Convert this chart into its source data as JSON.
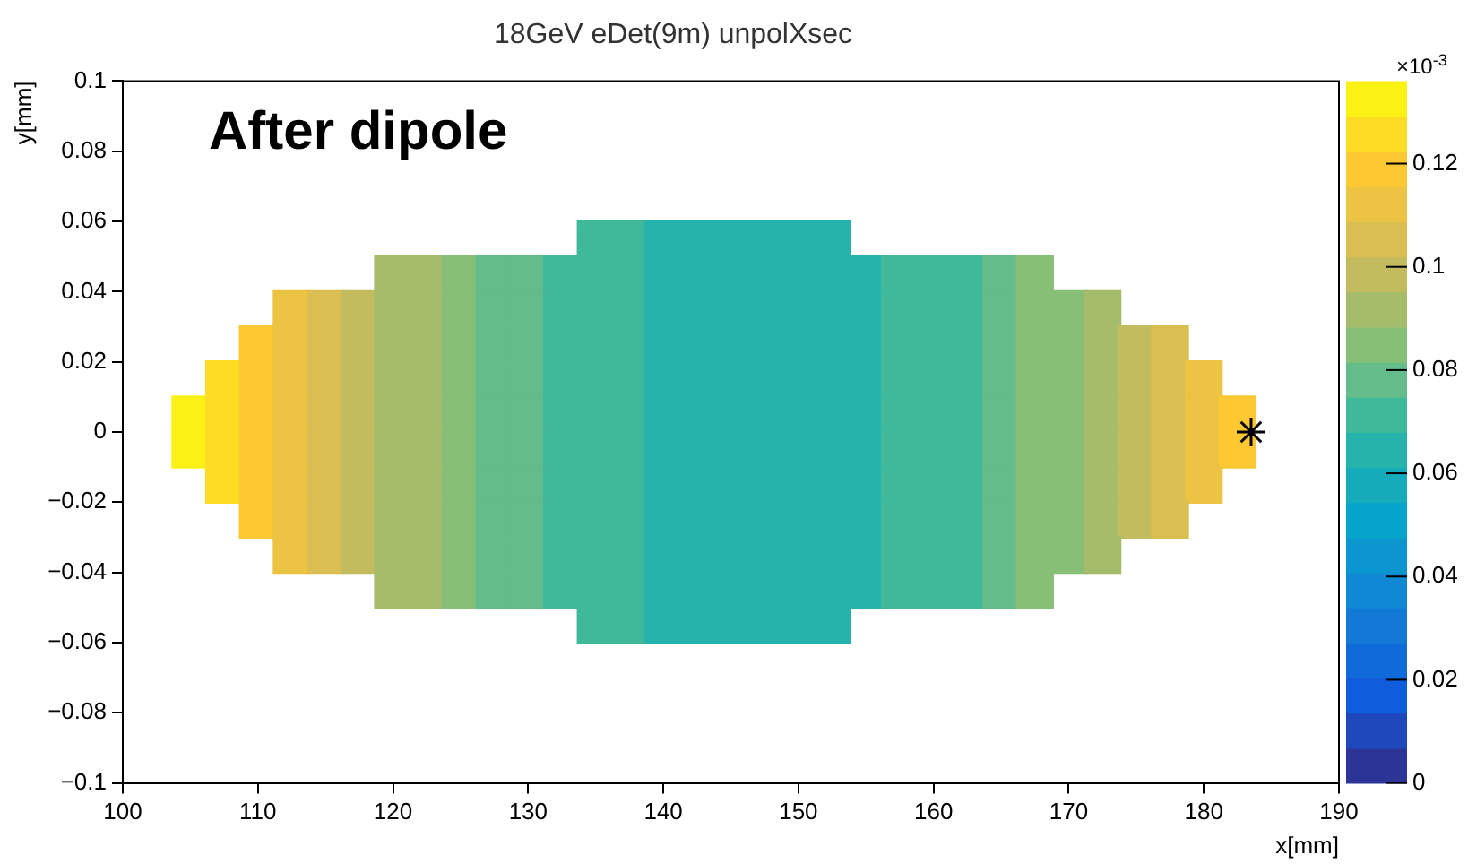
{
  "chart_data": {
    "type": "scatter",
    "title": "18GeV eDet(9m) unpolXsec",
    "xlabel": "x[mm]",
    "ylabel": "y[mm]",
    "clabel": "×10$^{-3}$",
    "annotations": [
      "After dipole"
    ],
    "xlim": [
      100,
      190
    ],
    "xticks": [
      100,
      110,
      120,
      130,
      140,
      150,
      160,
      170,
      180,
      190
    ],
    "ylim": [
      -0.1,
      0.1
    ],
    "yticks": [
      -0.1,
      -0.08,
      -0.06,
      -0.04,
      -0.02,
      0,
      0.02,
      0.04,
      0.06,
      0.08,
      0.1
    ],
    "clim": [
      0,
      0.136
    ],
    "cticks": [
      0,
      0.02,
      0.04,
      0.06,
      0.08,
      0.1,
      0.12
    ],
    "grid": false,
    "series": [
      {
        "type": "scatter",
        "marker": "square",
        "x": [
          135,
          137.5,
          140,
          142.5,
          145,
          147.5,
          150,
          152.5,
          120,
          122.5,
          125,
          127.5,
          130,
          132.5,
          135,
          137.5,
          140,
          142.5,
          145,
          147.5,
          150,
          152.5,
          155,
          157.5,
          160,
          162.5,
          165,
          167.5,
          112.5,
          115,
          117.5,
          120,
          122.5,
          125,
          127.5,
          130,
          132.5,
          135,
          137.5,
          140,
          142.5,
          145,
          147.5,
          150,
          152.5,
          155,
          157.5,
          160,
          162.5,
          165,
          167.5,
          170,
          172.5,
          110,
          112.5,
          115,
          117.5,
          120,
          122.5,
          125,
          127.5,
          130,
          132.5,
          135,
          137.5,
          140,
          142.5,
          145,
          147.5,
          150,
          152.5,
          155,
          157.5,
          160,
          162.5,
          165,
          167.5,
          170,
          172.5,
          175,
          177.5,
          107.5,
          110,
          112.5,
          115,
          117.5,
          120,
          122.5,
          125,
          127.5,
          130,
          132.5,
          135,
          137.5,
          140,
          142.5,
          145,
          147.5,
          150,
          152.5,
          155,
          157.5,
          160,
          162.5,
          165,
          167.5,
          170,
          172.5,
          175,
          177.5,
          180,
          105,
          107.5,
          110,
          112.5,
          115,
          117.5,
          120,
          122.5,
          125,
          127.5,
          130,
          132.5,
          135,
          137.5,
          140,
          142.5,
          145,
          147.5,
          150,
          152.5,
          155,
          157.5,
          160,
          162.5,
          165,
          167.5,
          170,
          172.5,
          175,
          177.5,
          180,
          182.5,
          105,
          107.5,
          110,
          112.5,
          115,
          117.5,
          120,
          122.5,
          125,
          127.5,
          130,
          132.5,
          135,
          137.5,
          140,
          142.5,
          145,
          147.5,
          150,
          152.5,
          155,
          157.5,
          160,
          162.5,
          165,
          167.5,
          170,
          172.5,
          175,
          177.5,
          180,
          182.5,
          107.5,
          110,
          112.5,
          115,
          117.5,
          120,
          122.5,
          125,
          127.5,
          130,
          132.5,
          135,
          137.5,
          140,
          142.5,
          145,
          147.5,
          150,
          152.5,
          155,
          157.5,
          160,
          162.5,
          165,
          167.5,
          170,
          172.5,
          175,
          177.5,
          180,
          110,
          112.5,
          115,
          117.5,
          120,
          122.5,
          125,
          127.5,
          130,
          132.5,
          135,
          137.5,
          140,
          142.5,
          145,
          147.5,
          150,
          152.5,
          155,
          157.5,
          160,
          162.5,
          165,
          167.5,
          170,
          172.5,
          175,
          177.5,
          112.5,
          115,
          117.5,
          120,
          122.5,
          125,
          127.5,
          130,
          132.5,
          135,
          137.5,
          140,
          142.5,
          145,
          147.5,
          150,
          152.5,
          155,
          157.5,
          160,
          162.5,
          165,
          167.5,
          170,
          172.5,
          120,
          122.5,
          125,
          127.5,
          130,
          132.5,
          135,
          137.5,
          140,
          142.5,
          145,
          147.5,
          150,
          152.5,
          155,
          157.5,
          160,
          162.5,
          165,
          167.5,
          135,
          137.5,
          140,
          142.5,
          145,
          147.5,
          150,
          152.5
        ],
        "values": [
          0.055,
          0.055,
          0.055,
          0.055,
          0.055,
          0.055,
          0.055,
          0.055,
          0.045,
          0.045,
          0.045,
          0.045,
          0.045,
          0.045,
          0.045,
          0.045,
          0.045,
          0.045,
          0.045,
          0.045,
          0.045,
          0.045,
          0.045,
          0.045,
          0.045,
          0.045,
          0.045,
          0.045,
          0.035,
          0.035,
          0.035,
          0.035,
          0.035,
          0.035,
          0.035,
          0.035,
          0.035,
          0.035,
          0.035,
          0.035,
          0.035,
          0.035,
          0.035,
          0.035,
          0.035,
          0.035,
          0.035,
          0.035,
          0.035,
          0.035,
          0.035,
          0.035,
          0.035,
          0.025,
          0.025,
          0.025,
          0.025,
          0.025,
          0.025,
          0.025,
          0.025,
          0.025,
          0.025,
          0.025,
          0.025,
          0.025,
          0.025,
          0.025,
          0.025,
          0.025,
          0.025,
          0.025,
          0.025,
          0.025,
          0.025,
          0.025,
          0.025,
          0.025,
          0.025,
          0.025,
          0.025,
          0.015,
          0.015,
          0.015,
          0.015,
          0.015,
          0.015,
          0.015,
          0.015,
          0.015,
          0.015,
          0.015,
          0.015,
          0.015,
          0.015,
          0.015,
          0.015,
          0.015,
          0.015,
          0.015,
          0.015,
          0.015,
          0.015,
          0.015,
          0.015,
          0.015,
          0.015,
          0.015,
          0.015,
          0.015,
          0.015,
          0.005,
          0.005,
          0.005,
          0.005,
          0.005,
          0.005,
          0.005,
          0.005,
          0.005,
          0.005,
          0.005,
          0.005,
          0.005,
          0.005,
          0.005,
          0.005,
          0.005,
          0.005,
          0.005,
          0.005,
          0.005,
          0.005,
          0.005,
          0.005,
          0.005,
          0.005,
          0.005,
          0.005,
          0.005,
          0.005,
          0.005,
          0.005,
          -0.005,
          -0.005,
          -0.005,
          -0.005,
          -0.005,
          -0.005,
          -0.005,
          -0.005,
          -0.005,
          -0.005,
          -0.005,
          -0.005,
          -0.005,
          -0.005,
          -0.005,
          -0.005,
          -0.005,
          -0.005,
          -0.005,
          -0.005,
          -0.005,
          -0.005,
          -0.005,
          -0.005,
          -0.005,
          -0.005,
          -0.005,
          -0.005,
          -0.005,
          -0.005,
          -0.005,
          -0.005,
          -0.015,
          -0.015,
          -0.015,
          -0.015,
          -0.015,
          -0.015,
          -0.015,
          -0.015,
          -0.015,
          -0.015,
          -0.015,
          -0.015,
          -0.015,
          -0.015,
          -0.015,
          -0.015,
          -0.015,
          -0.015,
          -0.015,
          -0.015,
          -0.015,
          -0.015,
          -0.015,
          -0.015,
          -0.015,
          -0.015,
          -0.015,
          -0.015,
          -0.015,
          -0.015,
          -0.025,
          -0.025,
          -0.025,
          -0.025,
          -0.025,
          -0.025,
          -0.025,
          -0.025,
          -0.025,
          -0.025,
          -0.025,
          -0.025,
          -0.025,
          -0.025,
          -0.025,
          -0.025,
          -0.025,
          -0.025,
          -0.025,
          -0.025,
          -0.025,
          -0.025,
          -0.025,
          -0.025,
          -0.025,
          -0.025,
          -0.025,
          -0.025,
          -0.035,
          -0.035,
          -0.035,
          -0.035,
          -0.035,
          -0.035,
          -0.035,
          -0.035,
          -0.035,
          -0.035,
          -0.035,
          -0.035,
          -0.035,
          -0.035,
          -0.035,
          -0.035,
          -0.035,
          -0.035,
          -0.035,
          -0.035,
          -0.035,
          -0.035,
          -0.035,
          -0.035,
          -0.035,
          -0.045,
          -0.045,
          -0.045,
          -0.045,
          -0.045,
          -0.045,
          -0.045,
          -0.045,
          -0.045,
          -0.045,
          -0.045,
          -0.045,
          -0.045,
          -0.045,
          -0.045,
          -0.045,
          -0.045,
          -0.045,
          -0.045,
          -0.045,
          -0.055,
          -0.055,
          -0.055,
          -0.055,
          -0.055,
          -0.055,
          -0.055,
          -0.055
        ],
        "cvalues": [
          0.072,
          0.072,
          0.065,
          0.065,
          0.065,
          0.065,
          0.065,
          0.065,
          0.093,
          0.093,
          0.086,
          0.079,
          0.079,
          0.072,
          0.072,
          0.072,
          0.065,
          0.065,
          0.065,
          0.065,
          0.065,
          0.065,
          0.065,
          0.072,
          0.072,
          0.072,
          0.079,
          0.086,
          0.113,
          0.106,
          0.1,
          0.093,
          0.093,
          0.086,
          0.079,
          0.079,
          0.072,
          0.072,
          0.072,
          0.065,
          0.065,
          0.065,
          0.065,
          0.065,
          0.065,
          0.065,
          0.072,
          0.072,
          0.072,
          0.079,
          0.086,
          0.086,
          0.093,
          0.12,
          0.113,
          0.106,
          0.1,
          0.093,
          0.093,
          0.086,
          0.079,
          0.079,
          0.072,
          0.072,
          0.072,
          0.065,
          0.065,
          0.065,
          0.065,
          0.065,
          0.065,
          0.065,
          0.072,
          0.072,
          0.072,
          0.079,
          0.086,
          0.086,
          0.093,
          0.1,
          0.106,
          0.126,
          0.12,
          0.113,
          0.106,
          0.1,
          0.093,
          0.093,
          0.086,
          0.079,
          0.079,
          0.072,
          0.072,
          0.072,
          0.065,
          0.065,
          0.065,
          0.065,
          0.065,
          0.065,
          0.065,
          0.072,
          0.072,
          0.072,
          0.079,
          0.086,
          0.086,
          0.093,
          0.1,
          0.106,
          0.113,
          0.133,
          0.126,
          0.12,
          0.113,
          0.106,
          0.1,
          0.093,
          0.093,
          0.086,
          0.079,
          0.079,
          0.072,
          0.072,
          0.072,
          0.065,
          0.065,
          0.065,
          0.065,
          0.065,
          0.065,
          0.065,
          0.072,
          0.072,
          0.072,
          0.079,
          0.086,
          0.086,
          0.093,
          0.1,
          0.106,
          0.113,
          0.12,
          0.133,
          0.126,
          0.12,
          0.113,
          0.106,
          0.1,
          0.093,
          0.093,
          0.086,
          0.079,
          0.079,
          0.072,
          0.072,
          0.072,
          0.065,
          0.065,
          0.065,
          0.065,
          0.065,
          0.065,
          0.065,
          0.072,
          0.072,
          0.072,
          0.079,
          0.086,
          0.086,
          0.093,
          0.1,
          0.106,
          0.113,
          0.12,
          0.126,
          0.12,
          0.113,
          0.106,
          0.1,
          0.093,
          0.093,
          0.086,
          0.079,
          0.079,
          0.072,
          0.072,
          0.072,
          0.065,
          0.065,
          0.065,
          0.065,
          0.065,
          0.065,
          0.065,
          0.072,
          0.072,
          0.072,
          0.079,
          0.086,
          0.086,
          0.093,
          0.1,
          0.106,
          0.113,
          0.12,
          0.113,
          0.106,
          0.1,
          0.093,
          0.093,
          0.086,
          0.079,
          0.079,
          0.072,
          0.072,
          0.072,
          0.065,
          0.065,
          0.065,
          0.065,
          0.065,
          0.065,
          0.065,
          0.072,
          0.072,
          0.072,
          0.079,
          0.086,
          0.086,
          0.093,
          0.1,
          0.106,
          0.113,
          0.106,
          0.1,
          0.093,
          0.093,
          0.086,
          0.079,
          0.079,
          0.072,
          0.072,
          0.072,
          0.065,
          0.065,
          0.065,
          0.065,
          0.065,
          0.065,
          0.065,
          0.072,
          0.072,
          0.072,
          0.079,
          0.086,
          0.086,
          0.093,
          0.093,
          0.093,
          0.086,
          0.079,
          0.079,
          0.072,
          0.072,
          0.072,
          0.065,
          0.065,
          0.065,
          0.065,
          0.065,
          0.065,
          0.065,
          0.072,
          0.072,
          0.072,
          0.079,
          0.086,
          0.072,
          0.072,
          0.065,
          0.065,
          0.065,
          0.065,
          0.065,
          0.065
        ],
        "colors": [
          "#40b99b",
          "#40b99b",
          "#26b3ab",
          "#26b3ab",
          "#26b3ab",
          "#26b3ab",
          "#26b3ab",
          "#26b3ab",
          "#a5bd6b",
          "#a5bd6b",
          "#87bf77",
          "#63bc89",
          "#63bc89",
          "#40b99b",
          "#40b99b",
          "#40b99b",
          "#26b3ab",
          "#26b3ab",
          "#26b3ab",
          "#26b3ab",
          "#26b3ab",
          "#26b3ab",
          "#26b3ab",
          "#40b99b",
          "#40b99b",
          "#40b99b",
          "#63bc89",
          "#87bf77",
          "#ecc342",
          "#dabe51",
          "#c2bc5f",
          "#a5bd6b",
          "#a5bd6b",
          "#87bf77",
          "#63bc89",
          "#63bc89",
          "#40b99b",
          "#40b99b",
          "#40b99b",
          "#26b3ab",
          "#26b3ab",
          "#26b3ab",
          "#26b3ab",
          "#26b3ab",
          "#26b3ab",
          "#26b3ab",
          "#40b99b",
          "#40b99b",
          "#40b99b",
          "#63bc89",
          "#87bf77",
          "#87bf77",
          "#a5bd6b",
          "#fec832",
          "#ecc342",
          "#dabe51",
          "#c2bc5f",
          "#a5bd6b",
          "#a5bd6b",
          "#87bf77",
          "#63bc89",
          "#63bc89",
          "#40b99b",
          "#40b99b",
          "#40b99b",
          "#26b3ab",
          "#26b3ab",
          "#26b3ab",
          "#26b3ab",
          "#26b3ab",
          "#26b3ab",
          "#26b3ab",
          "#40b99b",
          "#40b99b",
          "#40b99b",
          "#63bc89",
          "#87bf77",
          "#87bf77",
          "#a5bd6b",
          "#c2bc5f",
          "#dabe51",
          "#fcdd24",
          "#fec832",
          "#ecc342",
          "#dabe51",
          "#c2bc5f",
          "#a5bd6b",
          "#a5bd6b",
          "#87bf77",
          "#63bc89",
          "#63bc89",
          "#40b99b",
          "#40b99b",
          "#40b99b",
          "#26b3ab",
          "#26b3ab",
          "#26b3ab",
          "#26b3ab",
          "#26b3ab",
          "#26b3ab",
          "#26b3ab",
          "#40b99b",
          "#40b99b",
          "#40b99b",
          "#63bc89",
          "#87bf77",
          "#87bf77",
          "#a5bd6b",
          "#c2bc5f",
          "#dabe51",
          "#ecc342",
          "#faf115",
          "#fcdd24",
          "#fec832",
          "#ecc342",
          "#dabe51",
          "#c2bc5f",
          "#a5bd6b",
          "#a5bd6b",
          "#87bf77",
          "#63bc89",
          "#63bc89",
          "#40b99b",
          "#40b99b",
          "#40b99b",
          "#26b3ab",
          "#26b3ab",
          "#26b3ab",
          "#26b3ab",
          "#26b3ab",
          "#26b3ab",
          "#26b3ab",
          "#40b99b",
          "#40b99b",
          "#40b99b",
          "#63bc89",
          "#87bf77",
          "#87bf77",
          "#a5bd6b",
          "#c2bc5f",
          "#dabe51",
          "#ecc342",
          "#fec832",
          "#faf115",
          "#fcdd24",
          "#fec832",
          "#ecc342",
          "#dabe51",
          "#c2bc5f",
          "#a5bd6b",
          "#a5bd6b",
          "#87bf77",
          "#63bc89",
          "#63bc89",
          "#40b99b",
          "#40b99b",
          "#40b99b",
          "#26b3ab",
          "#26b3ab",
          "#26b3ab",
          "#26b3ab",
          "#26b3ab",
          "#26b3ab",
          "#26b3ab",
          "#40b99b",
          "#40b99b",
          "#40b99b",
          "#63bc89",
          "#87bf77",
          "#87bf77",
          "#a5bd6b",
          "#c2bc5f",
          "#dabe51",
          "#ecc342",
          "#fec832",
          "#fcdd24",
          "#fec832",
          "#ecc342",
          "#dabe51",
          "#c2bc5f",
          "#a5bd6b",
          "#a5bd6b",
          "#87bf77",
          "#63bc89",
          "#63bc89",
          "#40b99b",
          "#40b99b",
          "#40b99b",
          "#26b3ab",
          "#26b3ab",
          "#26b3ab",
          "#26b3ab",
          "#26b3ab",
          "#26b3ab",
          "#26b3ab",
          "#40b99b",
          "#40b99b",
          "#40b99b",
          "#63bc89",
          "#87bf77",
          "#87bf77",
          "#a5bd6b",
          "#c2bc5f",
          "#dabe51",
          "#ecc342",
          "#fec832",
          "#ecc342",
          "#dabe51",
          "#c2bc5f",
          "#a5bd6b",
          "#a5bd6b",
          "#87bf77",
          "#63bc89",
          "#63bc89",
          "#40b99b",
          "#40b99b",
          "#40b99b",
          "#26b3ab",
          "#26b3ab",
          "#26b3ab",
          "#26b3ab",
          "#26b3ab",
          "#26b3ab",
          "#26b3ab",
          "#40b99b",
          "#40b99b",
          "#40b99b",
          "#63bc89",
          "#87bf77",
          "#87bf77",
          "#a5bd6b",
          "#c2bc5f",
          "#dabe51",
          "#ecc342",
          "#dabe51",
          "#c2bc5f",
          "#a5bd6b",
          "#a5bd6b",
          "#87bf77",
          "#63bc89",
          "#63bc89",
          "#40b99b",
          "#40b99b",
          "#40b99b",
          "#26b3ab",
          "#26b3ab",
          "#26b3ab",
          "#26b3ab",
          "#26b3ab",
          "#26b3ab",
          "#26b3ab",
          "#40b99b",
          "#40b99b",
          "#40b99b",
          "#63bc89",
          "#87bf77",
          "#87bf77",
          "#a5bd6b",
          "#a5bd6b",
          "#a5bd6b",
          "#87bf77",
          "#63bc89",
          "#63bc89",
          "#40b99b",
          "#40b99b",
          "#40b99b",
          "#26b3ab",
          "#26b3ab",
          "#26b3ab",
          "#26b3ab",
          "#26b3ab",
          "#26b3ab",
          "#26b3ab",
          "#40b99b",
          "#40b99b",
          "#40b99b",
          "#63bc89",
          "#87bf77",
          "#40b99b",
          "#40b99b",
          "#26b3ab",
          "#26b3ab",
          "#26b3ab",
          "#26b3ab",
          "#26b3ab",
          "#26b3ab"
        ]
      },
      {
        "type": "scatter",
        "marker": "cross",
        "color": "#000000",
        "x": [
          183.5
        ],
        "values": [
          0
        ]
      }
    ]
  }
}
